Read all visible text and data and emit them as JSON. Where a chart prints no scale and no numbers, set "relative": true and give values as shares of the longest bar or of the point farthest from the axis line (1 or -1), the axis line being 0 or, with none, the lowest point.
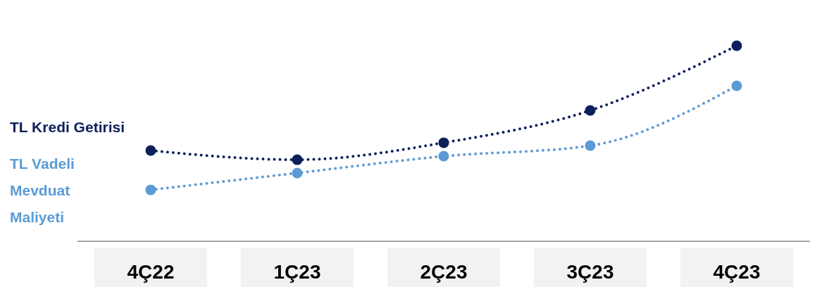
{
  "chart_data": {
    "type": "line",
    "relative": true,
    "categories": [
      "4Ç22",
      "1Ç23",
      "2Ç23",
      "3Ç23",
      "4Ç23"
    ],
    "marker": "circle",
    "line_style": "dotted",
    "series": [
      {
        "name": "TL Kredi Getirisi",
        "color": "#0b1f5a",
        "values": [
          0.464,
          0.417,
          0.504,
          0.669,
          1
        ]
      },
      {
        "name": "TL Vadeli Mevduat Maliyeti",
        "color": "#5b9bd5",
        "values": [
          0.263,
          0.349,
          0.435,
          0.489,
          0.795
        ]
      }
    ]
  }
}
